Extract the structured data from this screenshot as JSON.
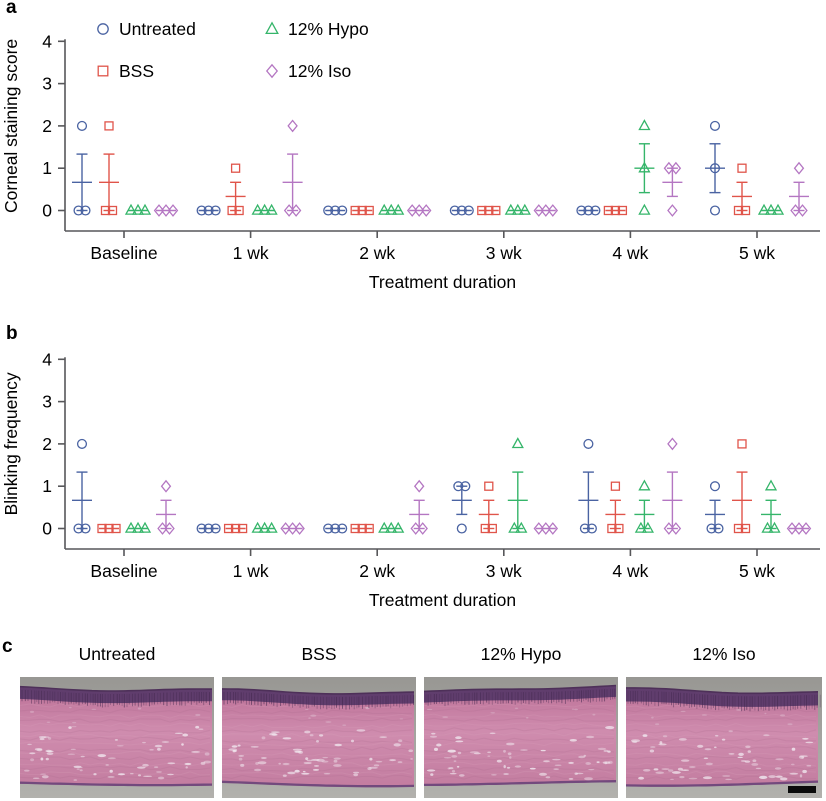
{
  "figure": {
    "panel_labels": {
      "a": "a",
      "b": "b",
      "c": "c"
    },
    "background": "#ffffff"
  },
  "colors": {
    "axis": "#57575a",
    "text": "#000000",
    "untreated": "#4a63a2",
    "bss": "#e0544a",
    "hypo": "#35b56a",
    "iso": "#b476c2"
  },
  "legend": {
    "position": "top-left inside panel a",
    "items": [
      {
        "label": "Untreated",
        "marker": "circle",
        "color": "#4a63a2"
      },
      {
        "label": "BSS",
        "marker": "square",
        "color": "#e0544a"
      },
      {
        "label": "12% Hypo",
        "marker": "triangle",
        "color": "#35b56a"
      },
      {
        "label": "12% Iso",
        "marker": "diamond",
        "color": "#b476c2"
      }
    ]
  },
  "chart_data": [
    {
      "panel": "a",
      "type": "scatter",
      "title": "",
      "ylabel": "Corneal staining score",
      "xlabel": "Treatment duration",
      "ylim": [
        0,
        4
      ],
      "yticks": [
        0,
        1,
        2,
        3,
        4
      ],
      "categories": [
        "Baseline",
        "1 wk",
        "2 wk",
        "3 wk",
        "4 wk",
        "5 wk"
      ],
      "summary": "individual replicate points (n=3 per group) with mean line and s.e.m. whiskers",
      "series": [
        {
          "name": "Untreated",
          "marker": "circle",
          "color": "#4a63a2",
          "values": [
            [
              2,
              0,
              0
            ],
            [
              0,
              0,
              0
            ],
            [
              0,
              0,
              0
            ],
            [
              0,
              0,
              0
            ],
            [
              0,
              0,
              0
            ],
            [
              2,
              1,
              0
            ]
          ]
        },
        {
          "name": "BSS",
          "marker": "square",
          "color": "#e0544a",
          "values": [
            [
              2,
              0,
              0
            ],
            [
              1,
              0,
              0
            ],
            [
              0,
              0,
              0
            ],
            [
              0,
              0,
              0
            ],
            [
              0,
              0,
              0
            ],
            [
              1,
              0,
              0
            ]
          ]
        },
        {
          "name": "12% Hypo",
          "marker": "triangle",
          "color": "#35b56a",
          "values": [
            [
              0,
              0,
              0
            ],
            [
              0,
              0,
              0
            ],
            [
              0,
              0,
              0
            ],
            [
              0,
              0,
              0
            ],
            [
              2,
              1,
              0
            ],
            [
              0,
              0,
              0
            ]
          ]
        },
        {
          "name": "12% Iso",
          "marker": "diamond",
          "color": "#b476c2",
          "values": [
            [
              0,
              0,
              0
            ],
            [
              2,
              0,
              0
            ],
            [
              0,
              0,
              0
            ],
            [
              0,
              0,
              0
            ],
            [
              1,
              1,
              0
            ],
            [
              1,
              0,
              0
            ]
          ]
        }
      ]
    },
    {
      "panel": "b",
      "type": "scatter",
      "title": "",
      "ylabel": "Blinking frequency",
      "xlabel": "Treatment duration",
      "ylim": [
        0,
        4
      ],
      "yticks": [
        0,
        1,
        2,
        3,
        4
      ],
      "categories": [
        "Baseline",
        "1 wk",
        "2 wk",
        "3 wk",
        "4 wk",
        "5 wk"
      ],
      "summary": "individual replicate points (n=3 per group) with mean line and s.e.m. whiskers",
      "series": [
        {
          "name": "Untreated",
          "marker": "circle",
          "color": "#4a63a2",
          "values": [
            [
              2,
              0,
              0
            ],
            [
              0,
              0,
              0
            ],
            [
              0,
              0,
              0
            ],
            [
              1,
              1,
              0
            ],
            [
              2,
              0,
              0
            ],
            [
              1,
              0,
              0
            ]
          ]
        },
        {
          "name": "BSS",
          "marker": "square",
          "color": "#e0544a",
          "values": [
            [
              0,
              0,
              0
            ],
            [
              0,
              0,
              0
            ],
            [
              0,
              0,
              0
            ],
            [
              1,
              0,
              0
            ],
            [
              1,
              0,
              0
            ],
            [
              2,
              0,
              0
            ]
          ]
        },
        {
          "name": "12% Hypo",
          "marker": "triangle",
          "color": "#35b56a",
          "values": [
            [
              0,
              0,
              0
            ],
            [
              0,
              0,
              0
            ],
            [
              0,
              0,
              0
            ],
            [
              2,
              0,
              0
            ],
            [
              1,
              0,
              0
            ],
            [
              1,
              0,
              0
            ]
          ]
        },
        {
          "name": "12% Iso",
          "marker": "diamond",
          "color": "#b476c2",
          "values": [
            [
              1,
              0,
              0
            ],
            [
              0,
              0,
              0
            ],
            [
              1,
              0,
              0
            ],
            [
              0,
              0,
              0
            ],
            [
              2,
              0,
              0
            ],
            [
              0,
              0,
              0
            ]
          ]
        }
      ]
    }
  ],
  "histology": {
    "panel": "c",
    "description": "H&E-stained corneal cross-sections",
    "images": [
      {
        "label": "Untreated",
        "scale_bar": false
      },
      {
        "label": "BSS",
        "scale_bar": false
      },
      {
        "label": "12% Hypo",
        "scale_bar": false
      },
      {
        "label": "12% Iso",
        "scale_bar": true
      }
    ]
  }
}
